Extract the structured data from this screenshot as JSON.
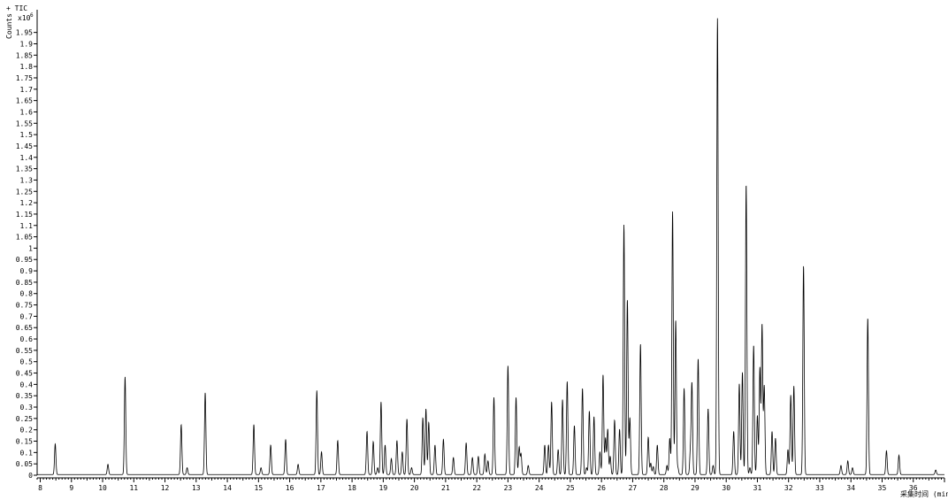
{
  "chart_data": {
    "type": "line",
    "title": "+ TIC",
    "ylabel": "Counts",
    "y_multiplier": "x10",
    "y_exponent": "6",
    "xlabel": "采集时间 (min)",
    "xlim": [
      7.9,
      37.0
    ],
    "ylim": [
      0,
      2.05
    ],
    "x_ticks": [
      8,
      9,
      10,
      11,
      12,
      13,
      14,
      15,
      16,
      17,
      18,
      19,
      20,
      21,
      22,
      23,
      24,
      25,
      26,
      27,
      28,
      29,
      30,
      31,
      32,
      33,
      34,
      35,
      36
    ],
    "x_tick_labels": [
      "8",
      "9",
      "10",
      "11",
      "12",
      "13",
      "14",
      "15",
      "16",
      "17",
      "18",
      "19",
      "20",
      "21",
      "22",
      "23",
      "24",
      "25",
      "26",
      "27",
      "28",
      "29",
      "30",
      "31",
      "32",
      "33",
      "34",
      "35",
      "36"
    ],
    "y_ticks": [
      0,
      0.05,
      0.1,
      0.15,
      0.2,
      0.25,
      0.3,
      0.35,
      0.4,
      0.45,
      0.5,
      0.55,
      0.6,
      0.65,
      0.7,
      0.75,
      0.8,
      0.85,
      0.9,
      0.95,
      1,
      1.05,
      1.1,
      1.15,
      1.2,
      1.25,
      1.3,
      1.35,
      1.4,
      1.45,
      1.5,
      1.55,
      1.6,
      1.65,
      1.7,
      1.75,
      1.8,
      1.85,
      1.9,
      1.95
    ],
    "y_tick_labels": [
      "0",
      "0.05",
      "0.1",
      "0.15",
      "0.2",
      "0.25",
      "0.3",
      "0.35",
      "0.4",
      "0.45",
      "0.5",
      "0.55",
      "0.6",
      "0.65",
      "0.7",
      "0.75",
      "0.8",
      "0.85",
      "0.9",
      "0.95",
      "1",
      "1.05",
      "1.1",
      "1.15",
      "1.2",
      "1.25",
      "1.3",
      "1.35",
      "1.4",
      "1.45",
      "1.5",
      "1.55",
      "1.6",
      "1.65",
      "1.7",
      "1.75",
      "1.8",
      "1.85",
      "1.9",
      "1.95"
    ],
    "grid": false,
    "series": [
      {
        "peaks": [
          [
            8.48,
            0.135
          ],
          [
            10.17,
            0.045
          ],
          [
            10.72,
            0.43
          ],
          [
            12.52,
            0.22
          ],
          [
            12.71,
            0.03
          ],
          [
            13.29,
            0.36
          ],
          [
            14.85,
            0.22
          ],
          [
            15.08,
            0.03
          ],
          [
            15.39,
            0.13
          ],
          [
            15.87,
            0.155
          ],
          [
            16.27,
            0.045
          ],
          [
            16.87,
            0.37
          ],
          [
            17.02,
            0.1
          ],
          [
            17.54,
            0.15
          ],
          [
            18.48,
            0.19
          ],
          [
            18.68,
            0.145
          ],
          [
            18.82,
            0.03
          ],
          [
            18.93,
            0.32
          ],
          [
            19.06,
            0.13
          ],
          [
            19.26,
            0.07
          ],
          [
            19.44,
            0.15
          ],
          [
            19.61,
            0.1
          ],
          [
            19.76,
            0.245
          ],
          [
            19.91,
            0.03
          ],
          [
            20.27,
            0.25
          ],
          [
            20.37,
            0.29
          ],
          [
            20.46,
            0.23
          ],
          [
            20.66,
            0.13
          ],
          [
            20.93,
            0.155
          ],
          [
            21.25,
            0.075
          ],
          [
            21.66,
            0.14
          ],
          [
            21.86,
            0.075
          ],
          [
            22.05,
            0.08
          ],
          [
            22.26,
            0.09
          ],
          [
            22.36,
            0.06
          ],
          [
            22.55,
            0.34
          ],
          [
            23.0,
            0.48
          ],
          [
            23.26,
            0.34
          ],
          [
            23.36,
            0.12
          ],
          [
            23.42,
            0.09
          ],
          [
            23.65,
            0.04
          ],
          [
            24.18,
            0.13
          ],
          [
            24.3,
            0.13
          ],
          [
            24.4,
            0.32
          ],
          [
            24.61,
            0.11
          ],
          [
            24.75,
            0.33
          ],
          [
            24.9,
            0.41
          ],
          [
            25.13,
            0.215
          ],
          [
            25.39,
            0.38
          ],
          [
            25.52,
            0.03
          ],
          [
            25.61,
            0.28
          ],
          [
            25.76,
            0.255
          ],
          [
            25.95,
            0.1
          ],
          [
            26.05,
            0.44
          ],
          [
            26.13,
            0.16
          ],
          [
            26.2,
            0.2
          ],
          [
            26.28,
            0.08
          ],
          [
            26.42,
            0.24
          ],
          [
            26.58,
            0.2
          ],
          [
            26.72,
            1.1
          ],
          [
            26.83,
            0.77
          ],
          [
            26.91,
            0.25
          ],
          [
            27.25,
            0.575
          ],
          [
            27.5,
            0.165
          ],
          [
            27.58,
            0.05
          ],
          [
            27.66,
            0.035
          ],
          [
            27.79,
            0.13
          ],
          [
            28.1,
            0.04
          ],
          [
            28.19,
            0.16
          ],
          [
            28.28,
            1.16
          ],
          [
            28.38,
            0.68
          ],
          [
            28.45,
            0.03
          ],
          [
            28.65,
            0.38
          ],
          [
            28.85,
            0.1
          ],
          [
            28.9,
            0.4
          ],
          [
            29.1,
            0.51
          ],
          [
            29.42,
            0.29
          ],
          [
            29.58,
            0.04
          ],
          [
            29.72,
            2.01
          ],
          [
            30.24,
            0.19
          ],
          [
            30.42,
            0.4
          ],
          [
            30.52,
            0.45
          ],
          [
            30.64,
            1.28
          ],
          [
            30.76,
            0.03
          ],
          [
            30.88,
            0.57
          ],
          [
            31.0,
            0.26
          ],
          [
            31.08,
            0.47
          ],
          [
            31.15,
            0.66
          ],
          [
            31.22,
            0.39
          ],
          [
            31.47,
            0.19
          ],
          [
            31.58,
            0.16
          ],
          [
            31.98,
            0.11
          ],
          [
            32.07,
            0.35
          ],
          [
            32.17,
            0.39
          ],
          [
            32.48,
            0.92
          ],
          [
            33.68,
            0.04
          ],
          [
            33.9,
            0.06
          ],
          [
            34.05,
            0.03
          ],
          [
            34.54,
            0.69
          ],
          [
            35.14,
            0.105
          ],
          [
            35.54,
            0.085
          ],
          [
            36.72,
            0.02
          ]
        ]
      }
    ]
  }
}
